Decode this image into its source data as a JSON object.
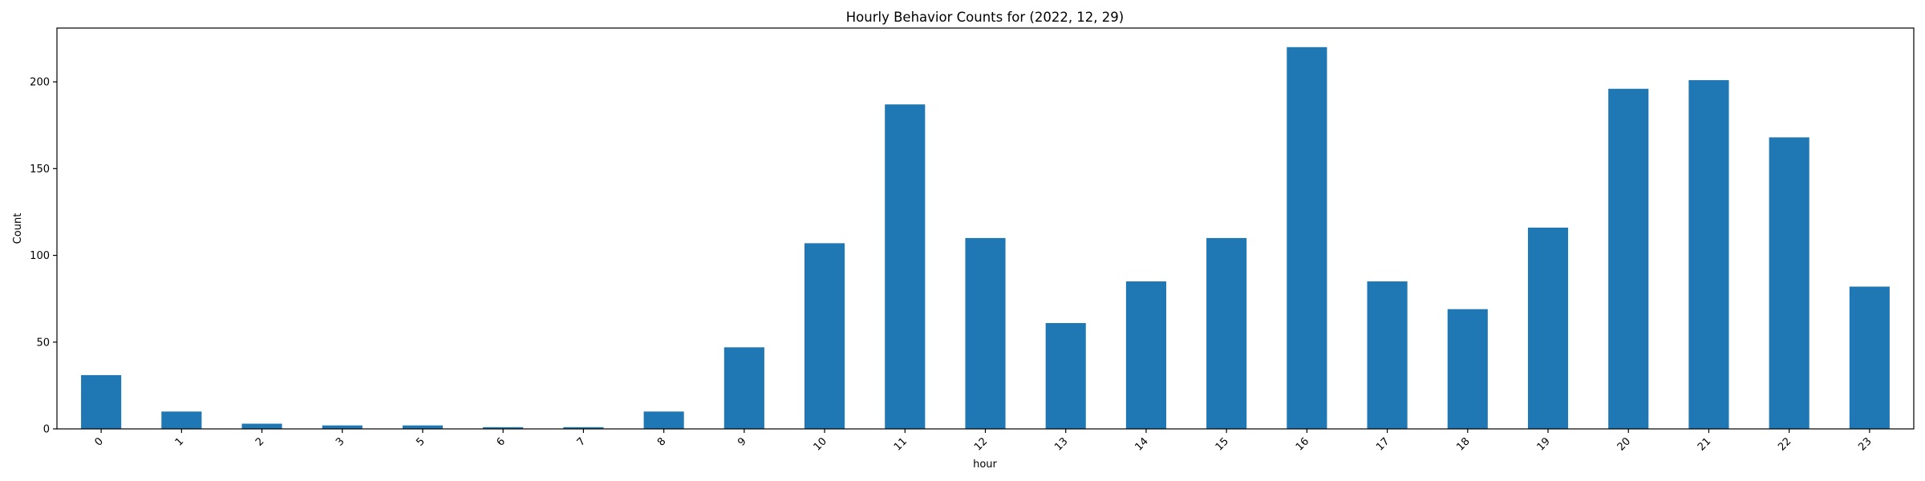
{
  "chart_data": {
    "type": "bar",
    "title": "Hourly Behavior Counts for (2022, 12, 29)",
    "xlabel": "hour",
    "ylabel": "Count",
    "categories": [
      "0",
      "1",
      "2",
      "3",
      "5",
      "6",
      "7",
      "8",
      "9",
      "10",
      "11",
      "12",
      "13",
      "14",
      "15",
      "16",
      "17",
      "18",
      "19",
      "20",
      "21",
      "22",
      "23"
    ],
    "values": [
      31,
      10,
      3,
      2,
      2,
      1,
      1,
      10,
      47,
      107,
      187,
      110,
      61,
      85,
      110,
      220,
      85,
      69,
      116,
      196,
      201,
      168,
      82
    ],
    "ylim": [
      0,
      231
    ],
    "yticks": [
      0,
      50,
      100,
      150,
      200
    ],
    "bar_color": "#1f77b4",
    "grid": false,
    "legend": "none"
  }
}
